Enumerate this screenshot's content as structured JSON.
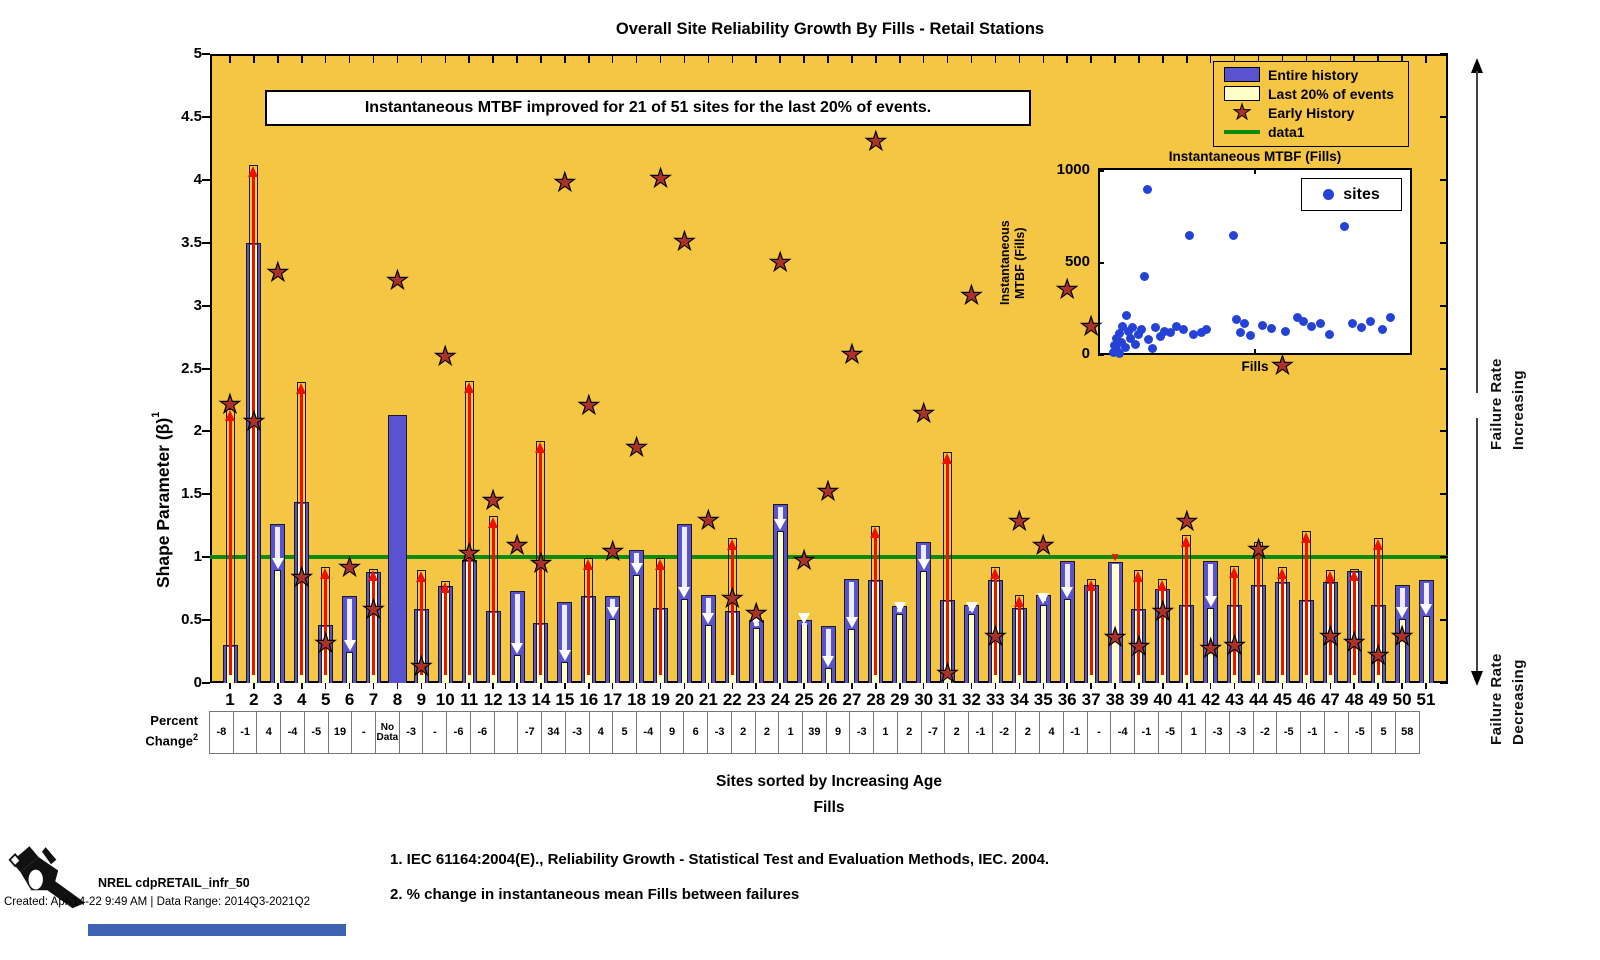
{
  "title": "Overall Site Reliability Growth By Fills - Retail Stations",
  "annotation": "Instantaneous MTBF improved for 21 of 51 sites for the last 20% of events.",
  "legend": {
    "entire": "Entire history",
    "last20": "Last 20% of events",
    "early": "Early History",
    "data1": "data1"
  },
  "y_axis": {
    "label": "Shape Parameter (β)",
    "sup": "1"
  },
  "right_labels": {
    "line1": "Failure Rate",
    "increasing": "Increasing",
    "decreasing": "Decreasing"
  },
  "x_footer": {
    "line1": "Sites sorted by Increasing Age",
    "line2": "Fills"
  },
  "percent_label": {
    "line1": "Percent",
    "line2": "Change",
    "sup": "2"
  },
  "footnotes": [
    "1. IEC 61164:2004(E)., Reliability Growth - Statistical Test and Evaluation Methods, IEC. 2004.",
    "2. % change in instantaneous mean Fills between failures"
  ],
  "footer_left": {
    "brand": "NREL cdpRETAIL_infr_50",
    "created": "Created: Apr-14-22  9:49 AM | Data Range: 2014Q3-2021Q2"
  },
  "inset": {
    "title": "Instantaneous MTBF (Fills)",
    "ylabel_line1": "Instantaneous MTBF",
    "ylabel_line2": "(Fills)",
    "xlabel": "Fills",
    "legend_label": "sites"
  },
  "colors": {
    "plot_bg": "#F5C644",
    "bar_blue": "#5952D1",
    "bar_yellow": "#FFFFC8",
    "green_line": "#0E8A10",
    "red_arrow": "#EE1100",
    "star_fill": "#AC3228",
    "white_arrow": "#FFFFFF",
    "white_shaft": "#EDEDFF",
    "inset_dot": "#2442D6",
    "cell_border": "#777777",
    "footer_rule": "#3E63B0"
  },
  "chart_data": {
    "type": "bar",
    "title": "Overall Site Reliability Growth By Fills - Retail Stations",
    "xlabel": "Sites sorted by Increasing Age (Fills)",
    "ylabel": "Shape Parameter (Beta)",
    "ylim": [
      0,
      5
    ],
    "ytick_step": 0.5,
    "reference_line": {
      "name": "data1",
      "y": 1.0
    },
    "categories": [
      1,
      2,
      3,
      4,
      5,
      6,
      7,
      8,
      9,
      10,
      11,
      12,
      13,
      14,
      15,
      16,
      17,
      18,
      19,
      20,
      21,
      22,
      23,
      24,
      25,
      26,
      27,
      28,
      29,
      30,
      31,
      32,
      33,
      34,
      35,
      36,
      37,
      38,
      39,
      40,
      41,
      42,
      43,
      44,
      45,
      46,
      47,
      48,
      49,
      50,
      51
    ],
    "series": [
      {
        "name": "Entire history",
        "values": [
          0.3,
          3.5,
          1.26,
          1.44,
          0.46,
          0.69,
          0.88,
          2.13,
          0.59,
          0.77,
          0.98,
          0.57,
          0.73,
          0.48,
          0.64,
          0.69,
          0.69,
          1.06,
          0.6,
          1.26,
          0.7,
          0.57,
          0.5,
          1.42,
          0.5,
          0.45,
          0.83,
          0.82,
          0.61,
          1.12,
          0.66,
          0.62,
          0.82,
          0.6,
          0.7,
          0.97,
          0.78,
          0.96,
          0.59,
          0.75,
          0.62,
          0.97,
          0.62,
          0.78,
          0.8,
          0.66,
          0.8,
          0.89,
          0.62,
          0.78,
          0.82
        ]
      },
      {
        "name": "Last 20% of events",
        "values": [
          2.18,
          4.12,
          0.9,
          2.39,
          0.92,
          0.25,
          0.91,
          null,
          0.9,
          0.81,
          2.4,
          1.33,
          0.22,
          1.92,
          0.17,
          0.99,
          0.51,
          0.86,
          0.99,
          0.67,
          0.46,
          1.15,
          0.44,
          1.21,
          0.46,
          0.12,
          0.43,
          1.25,
          0.55,
          0.89,
          1.84,
          0.55,
          0.92,
          0.7,
          0.62,
          0.67,
          0.83,
          1.0,
          0.9,
          0.83,
          1.18,
          0.6,
          0.93,
          1.12,
          0.92,
          1.21,
          0.9,
          0.91,
          1.15,
          0.51,
          0.53
        ]
      },
      {
        "name": "Early History",
        "values": [
          2.2,
          2.07,
          3.25,
          0.83,
          0.3,
          0.91,
          0.57,
          3.19,
          0.12,
          2.58,
          1.02,
          1.44,
          1.08,
          0.94,
          3.97,
          2.19,
          1.03,
          1.86,
          4.0,
          3.5,
          1.28,
          0.66,
          0.54,
          3.33,
          0.96,
          1.51,
          2.6,
          4.29,
          null,
          2.13,
          0.06,
          3.07,
          0.36,
          1.27,
          1.08,
          3.12,
          2.82,
          0.35,
          0.28,
          0.56,
          1.27,
          0.26,
          0.29,
          1.05,
          2.51,
          null,
          0.36,
          0.31,
          0.21,
          0.36,
          null
        ]
      }
    ],
    "trend_direction": [
      "up",
      "up",
      "down",
      "up",
      "up",
      "down",
      "up",
      "none",
      "up",
      "up",
      "up",
      "up",
      "down",
      "up",
      "down",
      "up",
      "down",
      "down",
      "up",
      "down",
      "down",
      "up",
      "down",
      "down",
      "down",
      "down",
      "down",
      "up",
      "down",
      "down",
      "up",
      "down",
      "up",
      "up",
      "down",
      "down",
      "up",
      "flat",
      "up",
      "up",
      "up",
      "down",
      "up",
      "up",
      "up",
      "up",
      "up",
      "up",
      "up",
      "down",
      "down"
    ],
    "percent_change": [
      "-8",
      "-1",
      "4",
      "-4",
      "-5",
      "19",
      "-",
      "No Data",
      "-3",
      "-",
      "-6",
      "-6",
      "",
      "-7",
      "34",
      "-3",
      "4",
      "5",
      "-4",
      "9",
      "6",
      "-3",
      "2",
      "2",
      "1",
      "39",
      "9",
      "-3",
      "1",
      "2",
      "-7",
      "2",
      "-1",
      "-2",
      "2",
      "4",
      "-1",
      "-",
      "-4",
      "-1",
      "-5",
      "1",
      "-3",
      "-3",
      "-2",
      "-5",
      "-1",
      "-",
      "-5",
      "5",
      "58"
    ],
    "inset": {
      "type": "scatter",
      "title": "Instantaneous MTBF (Fills)",
      "xlabel": "Fills",
      "ylabel": "Instantaneous MTBF (Fills)",
      "ylim": [
        0,
        1000
      ],
      "yticks": [
        0,
        500,
        1000
      ],
      "legend": [
        "sites"
      ],
      "points": [
        [
          0.01,
          15
        ],
        [
          0.015,
          55
        ],
        [
          0.02,
          30
        ],
        [
          0.022,
          95
        ],
        [
          0.03,
          10
        ],
        [
          0.032,
          120
        ],
        [
          0.038,
          70
        ],
        [
          0.042,
          160
        ],
        [
          0.05,
          45
        ],
        [
          0.055,
          215
        ],
        [
          0.06,
          130
        ],
        [
          0.068,
          95
        ],
        [
          0.075,
          150
        ],
        [
          0.085,
          60
        ],
        [
          0.095,
          115
        ],
        [
          0.105,
          140
        ],
        [
          0.115,
          430
        ],
        [
          0.125,
          900
        ],
        [
          0.13,
          85
        ],
        [
          0.145,
          40
        ],
        [
          0.155,
          150
        ],
        [
          0.17,
          105
        ],
        [
          0.185,
          130
        ],
        [
          0.205,
          125
        ],
        [
          0.225,
          155
        ],
        [
          0.25,
          140
        ],
        [
          0.27,
          650
        ],
        [
          0.285,
          115
        ],
        [
          0.31,
          125
        ],
        [
          0.33,
          140
        ],
        [
          0.42,
          650
        ],
        [
          0.43,
          195
        ],
        [
          0.445,
          125
        ],
        [
          0.46,
          175
        ],
        [
          0.48,
          110
        ],
        [
          0.52,
          165
        ],
        [
          0.55,
          145
        ],
        [
          0.6,
          130
        ],
        [
          0.64,
          205
        ],
        [
          0.66,
          185
        ],
        [
          0.69,
          160
        ],
        [
          0.72,
          175
        ],
        [
          0.75,
          115
        ],
        [
          0.8,
          700
        ],
        [
          0.83,
          175
        ],
        [
          0.86,
          150
        ],
        [
          0.89,
          185
        ],
        [
          0.93,
          140
        ],
        [
          0.96,
          205
        ]
      ]
    }
  }
}
